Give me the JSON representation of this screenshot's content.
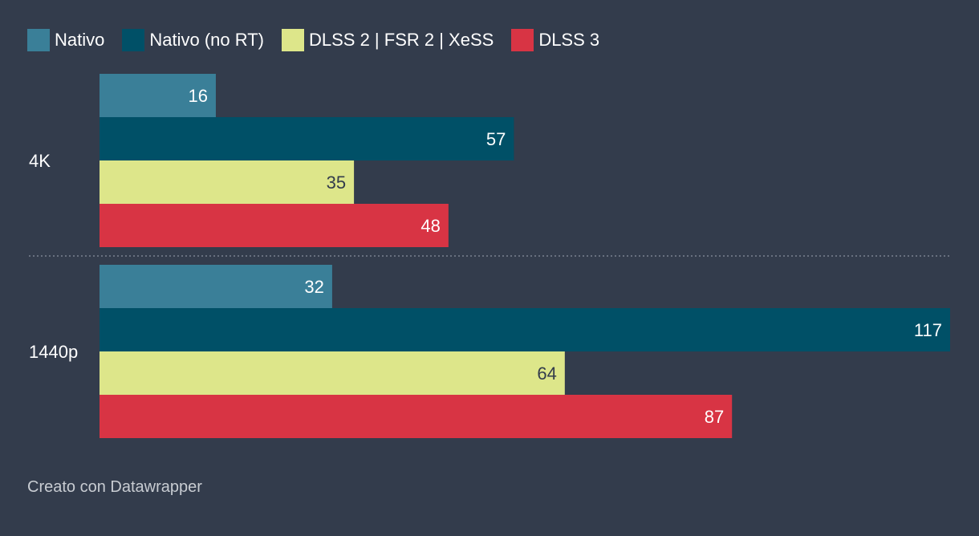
{
  "colors": {
    "background": "#333c4c",
    "nativo": "#3a7f98",
    "nativo_no_rt": "#005067",
    "upscaling": "#dde68a",
    "dlss3": "#d83444"
  },
  "chart_data": {
    "type": "bar",
    "orientation": "horizontal",
    "categories": [
      "4K",
      "1440p"
    ],
    "series": [
      {
        "name": "Nativo",
        "values": [
          16,
          32
        ],
        "color": "#3a7f98",
        "label_color": "#ffffff"
      },
      {
        "name": "Nativo (no RT)",
        "values": [
          57,
          117
        ],
        "color": "#005067",
        "label_color": "#ffffff"
      },
      {
        "name": "DLSS 2 | FSR 2 | XeSS",
        "values": [
          35,
          64
        ],
        "color": "#dde68a",
        "label_color": "#333c4c"
      },
      {
        "name": "DLSS 3",
        "values": [
          48,
          87
        ],
        "color": "#d83444",
        "label_color": "#ffffff"
      }
    ],
    "xlim": [
      0,
      117
    ],
    "grid": false,
    "legend": "top-left",
    "data_labels": "inside-end"
  },
  "footer": {
    "text": "Creato con Datawrapper"
  }
}
